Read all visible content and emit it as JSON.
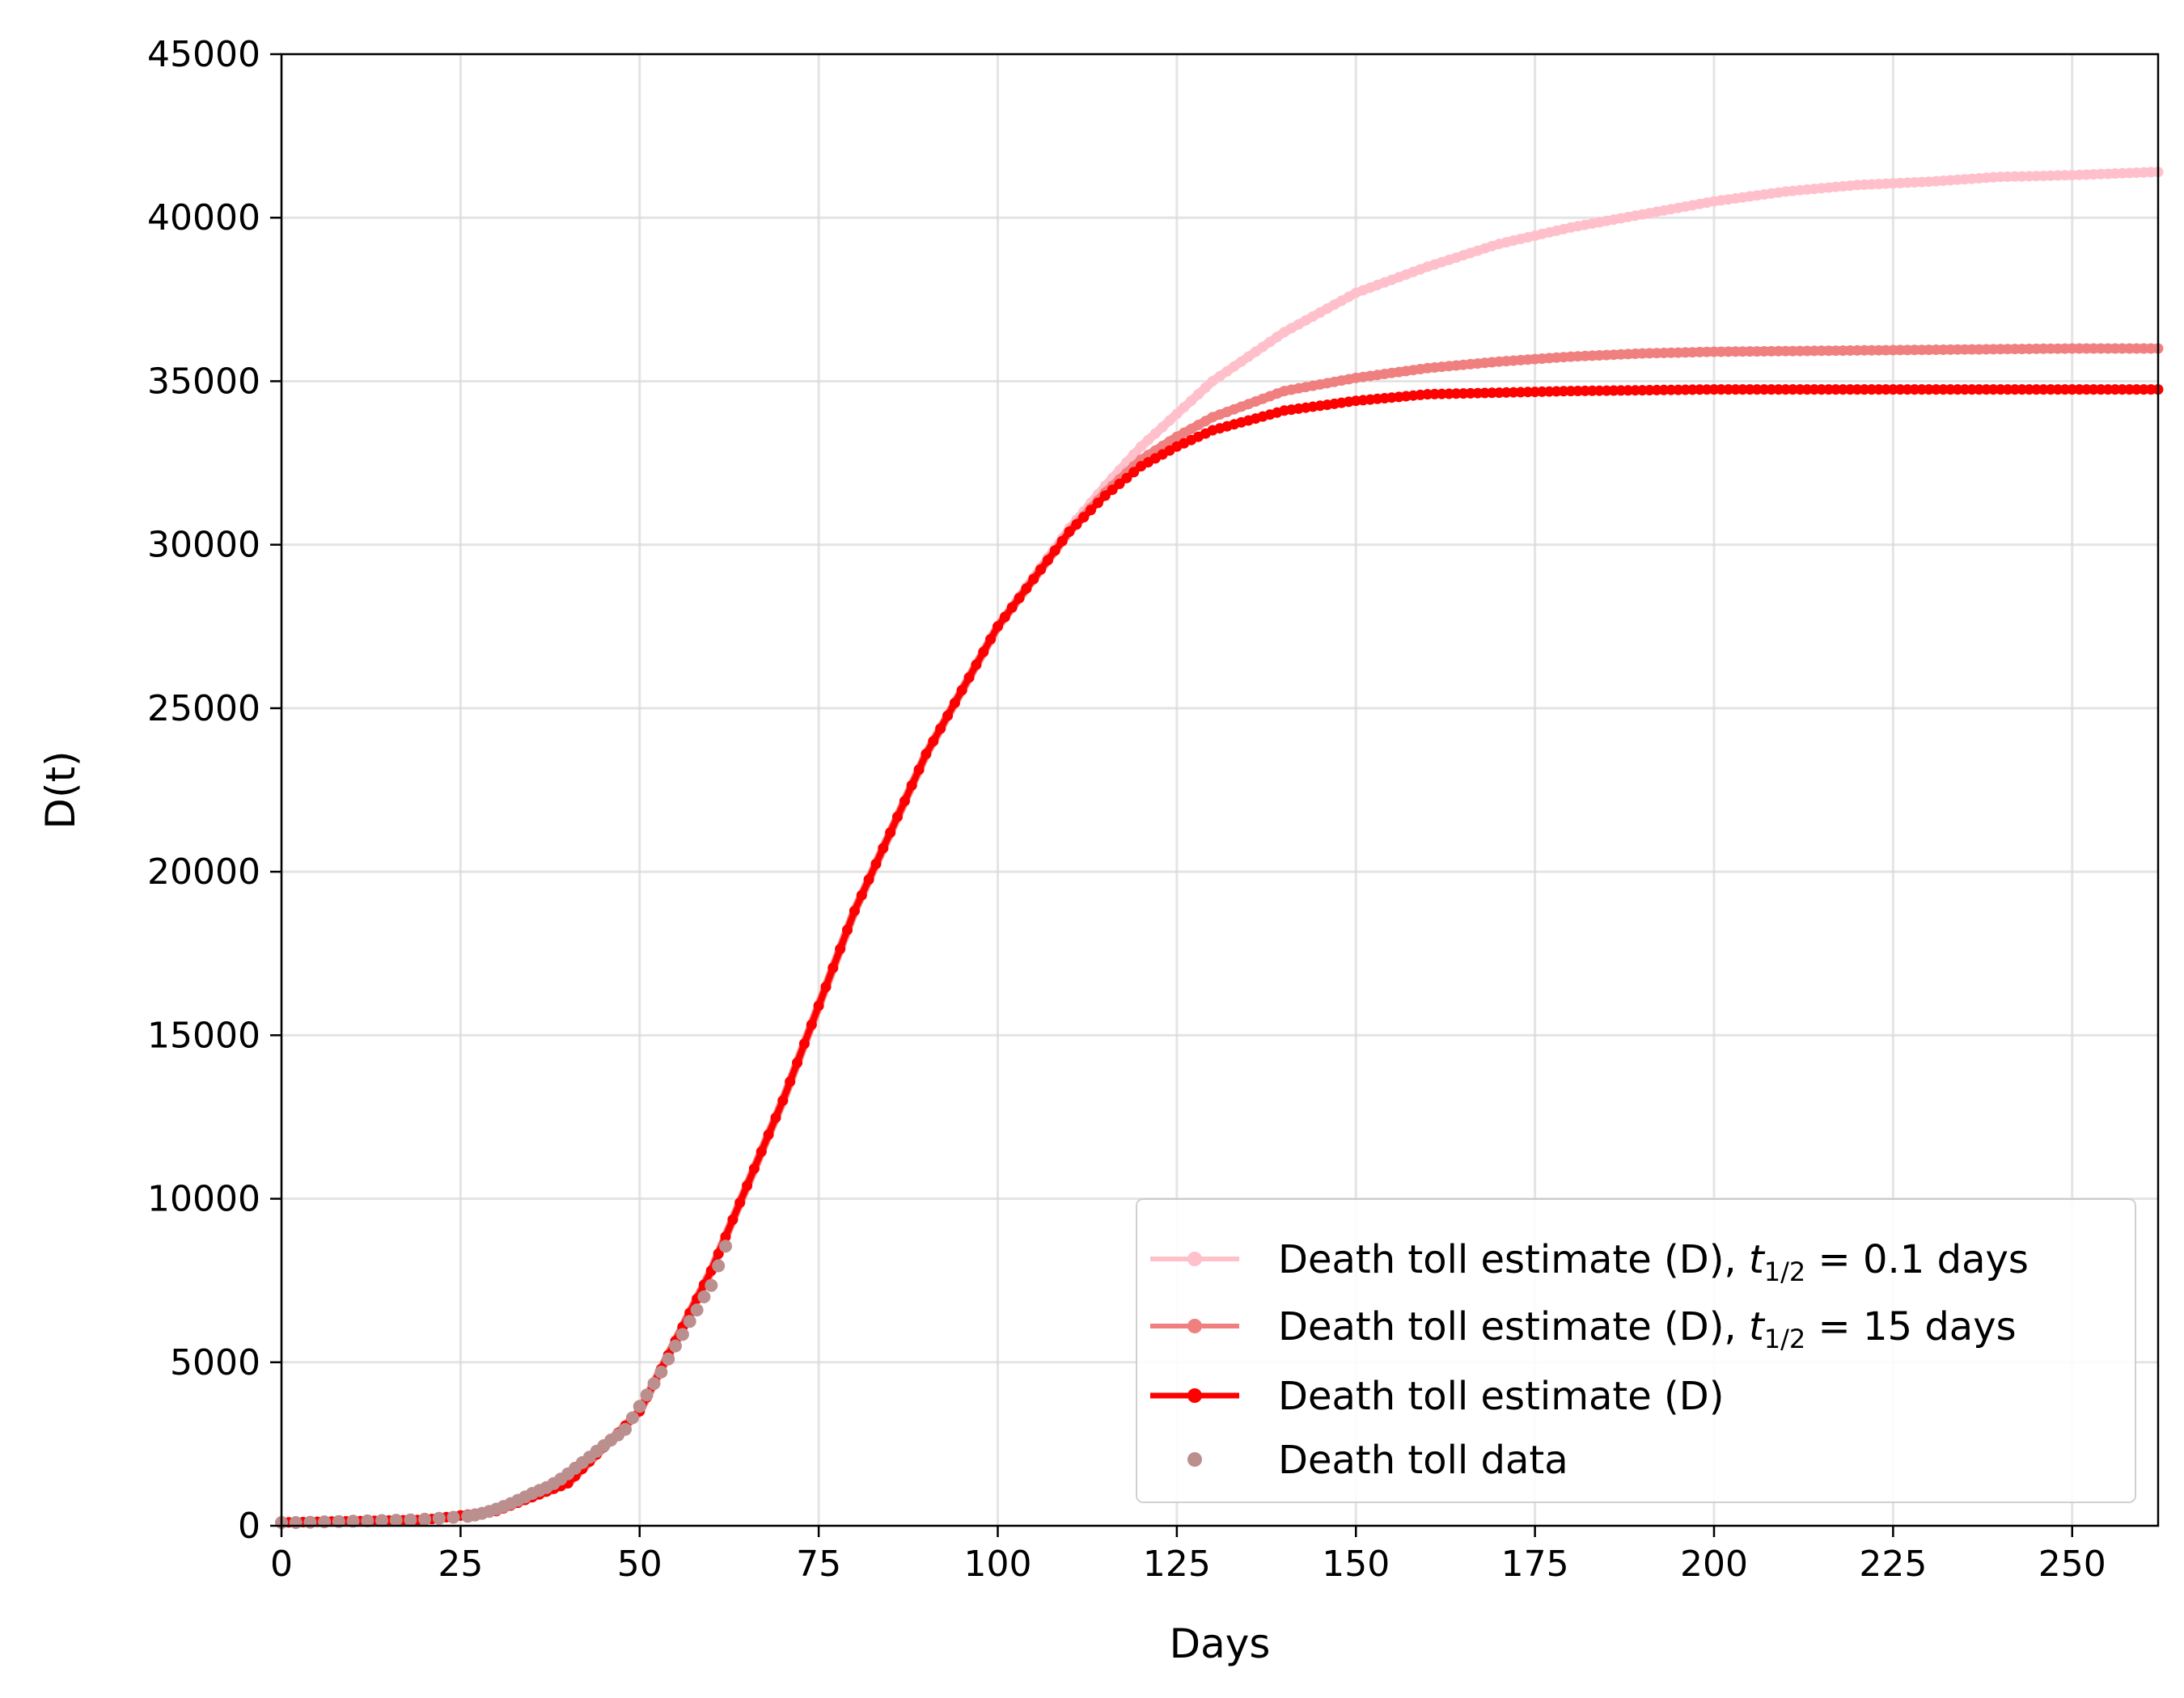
{
  "chart_data": {
    "type": "line",
    "xlabel": "Days",
    "ylabel": "D(t)",
    "xlim": [
      0,
      262
    ],
    "ylim": [
      0,
      45000
    ],
    "xticks": [
      0,
      25,
      50,
      75,
      100,
      125,
      150,
      175,
      200,
      225,
      250
    ],
    "yticks": [
      0,
      5000,
      10000,
      15000,
      20000,
      25000,
      30000,
      35000,
      40000,
      45000
    ],
    "grid": true,
    "legend_placement": "lower-right",
    "series": [
      {
        "name": "Death toll estimate (D), t1/2 = 0.1 days",
        "legend_main": "Death toll estimate (D), ",
        "legend_var": "t",
        "legend_sub": "1/2",
        "legend_eq": " = 0.1 days",
        "color": "#ffc0cb",
        "style": "line+markers",
        "x": [
          0,
          20,
          30,
          40,
          50,
          60,
          70,
          80,
          90,
          100,
          110,
          115,
          120,
          125,
          130,
          140,
          150,
          160,
          170,
          180,
          190,
          200,
          210,
          220,
          230,
          240,
          250,
          262
        ],
        "y": [
          100,
          180,
          450,
          1300,
          3500,
          7800,
          13000,
          18800,
          23600,
          27500,
          30500,
          31800,
          33000,
          34000,
          35000,
          36500,
          37700,
          38500,
          39200,
          39700,
          40100,
          40500,
          40800,
          41000,
          41100,
          41250,
          41300,
          41400
        ]
      },
      {
        "name": "Death toll estimate (D), t1/2 = 15 days",
        "legend_main": "Death toll estimate (D), ",
        "legend_var": "t",
        "legend_sub": "1/2",
        "legend_eq": " = 15 days",
        "color": "#f08080",
        "style": "line+markers",
        "x": [
          0,
          20,
          30,
          40,
          50,
          60,
          70,
          80,
          90,
          100,
          110,
          115,
          120,
          125,
          130,
          140,
          150,
          160,
          170,
          180,
          190,
          200,
          225,
          250,
          262
        ],
        "y": [
          100,
          180,
          450,
          1300,
          3500,
          7800,
          13000,
          18800,
          23600,
          27500,
          30400,
          31600,
          32600,
          33300,
          33900,
          34700,
          35100,
          35400,
          35600,
          35750,
          35850,
          35900,
          35950,
          36000,
          36000
        ]
      },
      {
        "name": "Death toll estimate (D)",
        "legend_main": "Death toll estimate (D)",
        "color": "#ff0000",
        "style": "line+markers",
        "x": [
          0,
          20,
          30,
          40,
          50,
          60,
          70,
          80,
          90,
          100,
          110,
          115,
          120,
          125,
          130,
          140,
          150,
          160,
          170,
          180,
          200,
          225,
          250,
          262
        ],
        "y": [
          100,
          180,
          450,
          1300,
          3500,
          7800,
          13000,
          18800,
          23600,
          27500,
          30400,
          31500,
          32400,
          33000,
          33500,
          34100,
          34400,
          34600,
          34650,
          34700,
          34750,
          34750,
          34750,
          34750
        ]
      },
      {
        "name": "Death toll data",
        "legend_main": "Death toll data",
        "color": "#bc8f8f",
        "style": "markers",
        "x": [
          0,
          2,
          4,
          6,
          8,
          10,
          12,
          14,
          16,
          18,
          20,
          22,
          24,
          26,
          27,
          28,
          29,
          30,
          31,
          32,
          33,
          34,
          35,
          36,
          37,
          38,
          39,
          40,
          41,
          42,
          43,
          44,
          45,
          46,
          47,
          48,
          49,
          50,
          51,
          52,
          53,
          54,
          55,
          56,
          57,
          58,
          59,
          60,
          61,
          62
        ],
        "y": [
          100,
          100,
          110,
          120,
          130,
          140,
          150,
          160,
          170,
          180,
          200,
          230,
          260,
          290,
          330,
          380,
          440,
          510,
          590,
          680,
          780,
          880,
          990,
          1080,
          1170,
          1290,
          1430,
          1590,
          1760,
          1930,
          2100,
          2280,
          2450,
          2620,
          2780,
          2950,
          3300,
          3650,
          4000,
          4350,
          4700,
          5100,
          5500,
          5850,
          6250,
          6600,
          7000,
          7350,
          7950,
          8550
        ]
      }
    ]
  }
}
